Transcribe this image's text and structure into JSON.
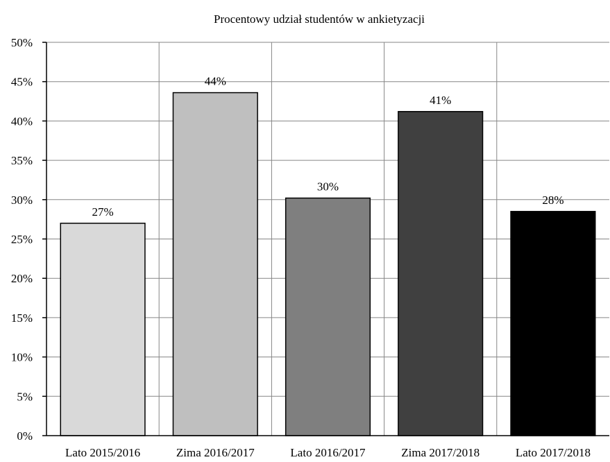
{
  "chart_data": {
    "type": "bar",
    "title": "Procentowy udział studentów w ankietyzacji",
    "xlabel": "",
    "ylabel": "",
    "categories": [
      "Lato 2015/2016",
      "Zima 2016/2017",
      "Lato 2016/2017",
      "Zima 2017/2018",
      "Lato 2017/2018"
    ],
    "values": [
      0.27,
      0.436,
      0.302,
      0.412,
      0.285
    ],
    "data_labels": [
      "27%",
      "44%",
      "30%",
      "41%",
      "28%"
    ],
    "bar_colors": [
      "#d9d9d9",
      "#bfbfbf",
      "#7f7f7f",
      "#404040",
      "#000000"
    ],
    "ylim": [
      0,
      0.5
    ],
    "yticks": [
      0,
      0.05,
      0.1,
      0.15,
      0.2,
      0.25,
      0.3,
      0.35,
      0.4,
      0.45,
      0.5
    ],
    "ytick_labels": [
      "0%",
      "5%",
      "10%",
      "15%",
      "20%",
      "25%",
      "30%",
      "35%",
      "40%",
      "45%",
      "50%"
    ],
    "grid": true,
    "legend": "none"
  }
}
